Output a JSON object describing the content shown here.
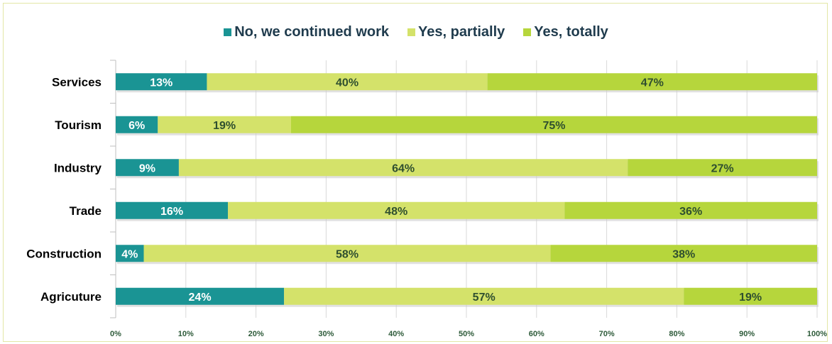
{
  "chart_data": {
    "type": "bar",
    "orientation": "horizontal",
    "stacked": true,
    "percent": true,
    "title": "",
    "xlabel": "",
    "ylabel": "",
    "xlim": [
      0,
      100
    ],
    "grid": true,
    "legend_position": "top",
    "categories": [
      "Services",
      "Tourism",
      "Industry",
      "Trade",
      "Construction",
      "Agricuture"
    ],
    "series": [
      {
        "name": "No, we continued work",
        "color": "#1a9494",
        "label_color": "#ffffff",
        "values": [
          13,
          6,
          9,
          16,
          4,
          24
        ]
      },
      {
        "name": "Yes, partially",
        "color": "#d4e26a",
        "label_color": "#2f4f2f",
        "values": [
          40,
          19,
          64,
          48,
          58,
          57
        ]
      },
      {
        "name": "Yes, totally",
        "color": "#b6d63c",
        "label_color": "#2f4f2f",
        "values": [
          47,
          75,
          27,
          36,
          38,
          19
        ]
      }
    ],
    "x_ticks": [
      "0%",
      "10%",
      "20%",
      "30%",
      "40%",
      "50%",
      "60%",
      "70%",
      "80%",
      "90%",
      "100%"
    ],
    "data_labels": [
      [
        "13%",
        "40%",
        "47%"
      ],
      [
        "6%",
        "19%",
        "75%"
      ],
      [
        "9%",
        "64%",
        "27%"
      ],
      [
        "16%",
        "48%",
        "36%"
      ],
      [
        "4%",
        "58%",
        "38%"
      ],
      [
        "24%",
        "57%",
        "19%"
      ]
    ]
  }
}
